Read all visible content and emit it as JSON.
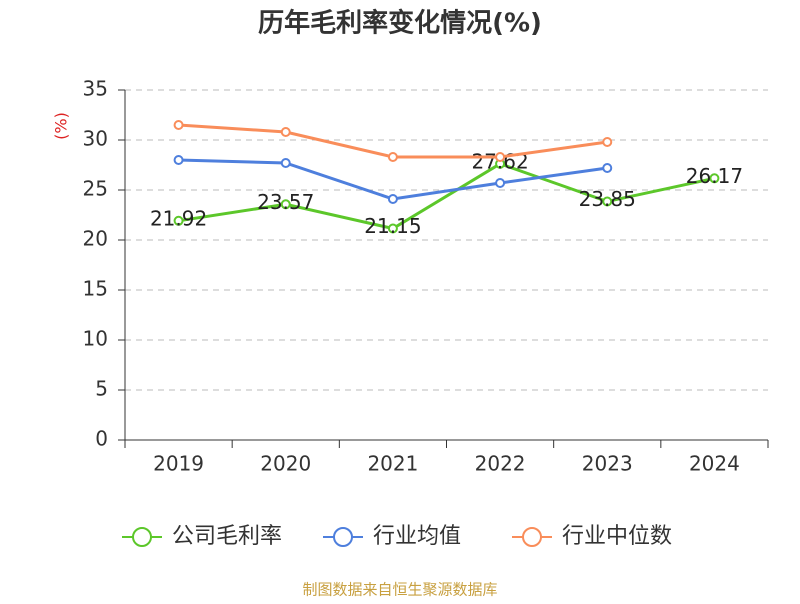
{
  "chart_data": {
    "type": "line",
    "title": "历年毛利率变化情况(%)",
    "y_label": "(%)",
    "categories": [
      "2019",
      "2020",
      "2021",
      "2022",
      "2023",
      "2024"
    ],
    "series": [
      {
        "name": "公司毛利率",
        "color": "#5cc72a",
        "values": [
          21.92,
          23.57,
          21.15,
          27.62,
          23.85,
          26.17
        ],
        "show_labels": true
      },
      {
        "name": "行业均值",
        "color": "#4e7fdd",
        "values": [
          28.0,
          27.7,
          24.1,
          25.7,
          27.2,
          null
        ],
        "show_labels": false
      },
      {
        "name": "行业中位数",
        "color": "#f98d5a",
        "values": [
          31.5,
          30.8,
          28.3,
          28.3,
          29.8,
          null
        ],
        "show_labels": false
      }
    ],
    "ylim": [
      0,
      35
    ],
    "yticks": [
      0,
      5,
      10,
      15,
      20,
      25,
      30,
      35
    ],
    "grid": true,
    "source": "制图数据来自恒生聚源数据库"
  }
}
